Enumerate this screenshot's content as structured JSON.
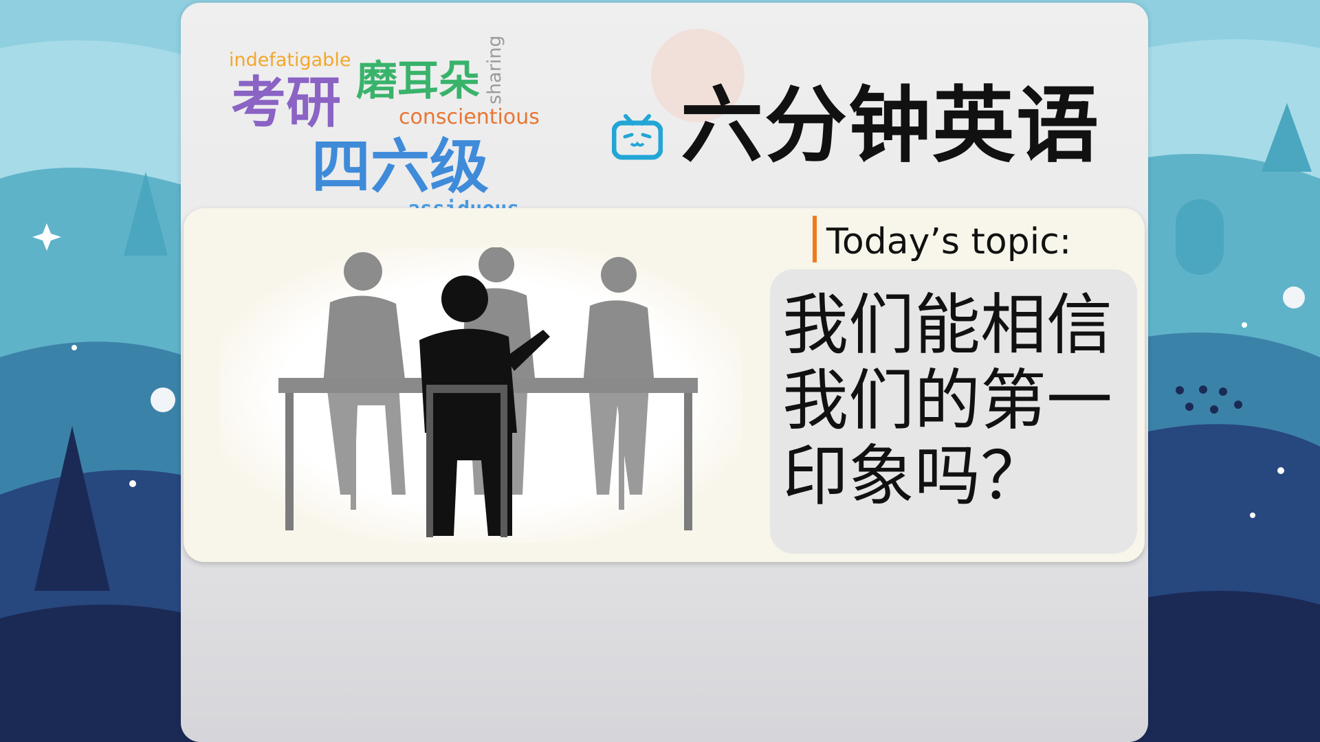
{
  "brand": {
    "title": "六分钟英语",
    "icon": "bilibili-tv-icon"
  },
  "word_cloud": [
    "indefatigable",
    "磨耳朵",
    "考研",
    "conscientious",
    "四六级",
    "assiduous",
    "sharing"
  ],
  "topic": {
    "label": "Today’s topic:",
    "question": "我们能相信我们的第一印象吗？"
  },
  "colors": {
    "accent": "#f07b1f",
    "brand_blue": "#23a6d5"
  }
}
